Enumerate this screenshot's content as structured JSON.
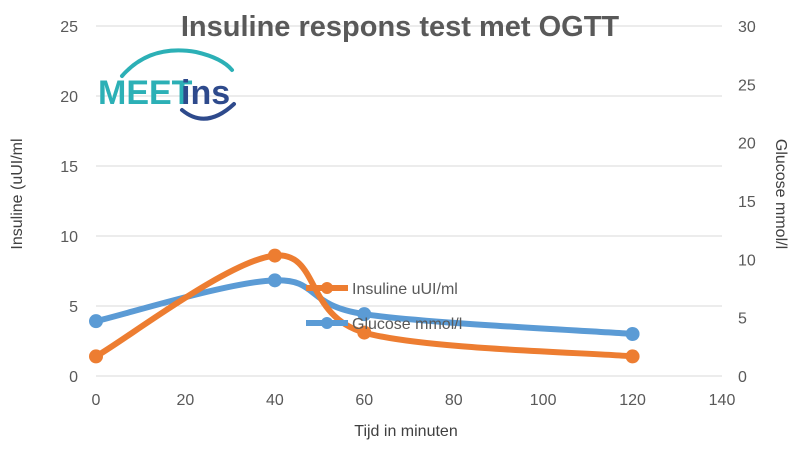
{
  "chart_data": {
    "type": "line",
    "title": "Insuline respons test met OGTT",
    "xlabel": "Tijd in minuten",
    "ylabel": "Insuline (uUI/ml",
    "y2label": "Glucose mmol/l",
    "xlim": [
      0,
      140
    ],
    "ylim": [
      0,
      25
    ],
    "y2lim": [
      0,
      30
    ],
    "xticks": [
      "0",
      "20",
      "40",
      "60",
      "80",
      "100",
      "120",
      "140"
    ],
    "yticks": [
      "0",
      "5",
      "10",
      "15",
      "20",
      "25"
    ],
    "y2ticks": [
      "0",
      "5",
      "10",
      "15",
      "20",
      "25",
      "30"
    ],
    "grid": true,
    "legend_position": "center",
    "series": [
      {
        "name": "Insuline uUI/ml",
        "axis": "left",
        "color": "#ED7D31",
        "x": [
          0,
          40,
          60,
          120
        ],
        "y": [
          1.4,
          8.6,
          3.1,
          1.4
        ]
      },
      {
        "name": "Glucose mmol/l",
        "axis": "right",
        "color": "#5B9BD5",
        "x": [
          0,
          40,
          60,
          120
        ],
        "y": [
          4.7,
          8.2,
          5.3,
          3.6
        ]
      }
    ]
  },
  "logo": {
    "text_left": "MEET",
    "text_right": "ins",
    "color_primary": "#2CB0B6",
    "color_secondary": "#2E4A8C"
  }
}
